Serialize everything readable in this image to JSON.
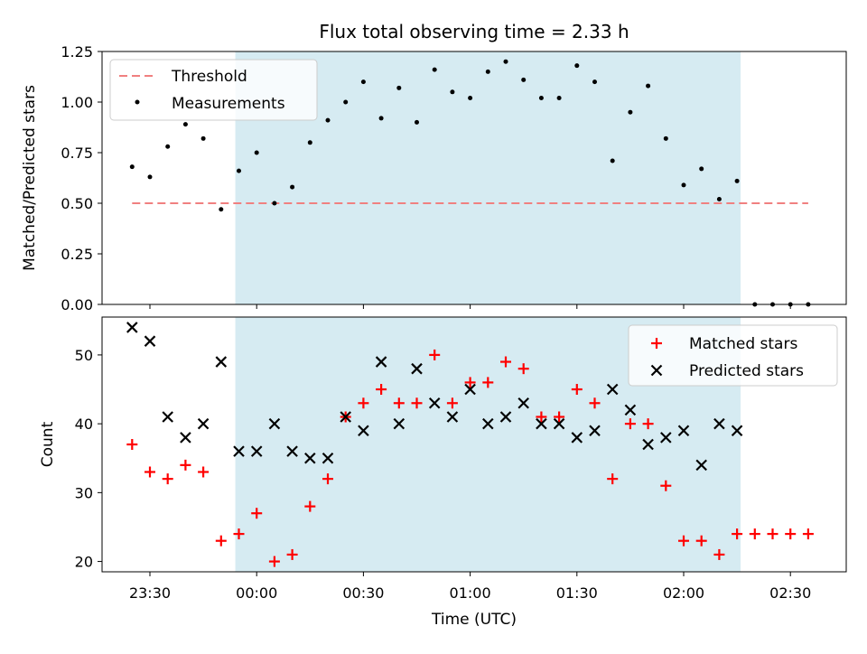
{
  "chart_data": [
    {
      "type": "scatter",
      "title": "Flux total observing time = 2.33 h",
      "ylabel": "Matched/Predicted stars",
      "xlabel": "",
      "ylim": [
        0,
        1.25
      ],
      "yticks": [
        "0.00",
        "0.25",
        "0.50",
        "0.75",
        "1.00",
        "1.25"
      ],
      "shaded_span": {
        "start": "23:54",
        "end": "02:16",
        "color": "#add8e6"
      },
      "legend_position": "top-left",
      "threshold": {
        "name": "Threshold",
        "value": 0.5,
        "start": "23:25",
        "end": "02:35",
        "color": "#f08080"
      },
      "series": [
        {
          "name": "Measurements",
          "color": "#000000",
          "x": [
            "23:25",
            "23:30",
            "23:35",
            "23:40",
            "23:45",
            "23:50",
            "23:55",
            "00:00",
            "00:05",
            "00:10",
            "00:15",
            "00:20",
            "00:25",
            "00:30",
            "00:35",
            "00:40",
            "00:45",
            "00:50",
            "00:55",
            "01:00",
            "01:05",
            "01:10",
            "01:15",
            "01:20",
            "01:25",
            "01:30",
            "01:35",
            "01:40",
            "01:45",
            "01:50",
            "01:55",
            "02:00",
            "02:05",
            "02:10",
            "02:15",
            "02:20",
            "02:25",
            "02:30",
            "02:35"
          ],
          "y": [
            0.68,
            0.63,
            0.78,
            0.89,
            0.82,
            0.47,
            0.66,
            0.75,
            0.5,
            0.58,
            0.8,
            0.91,
            1.0,
            1.1,
            0.92,
            1.07,
            0.9,
            1.16,
            1.05,
            1.02,
            1.15,
            1.2,
            1.11,
            1.02,
            1.02,
            1.18,
            1.1,
            0.71,
            0.95,
            1.08,
            0.82,
            0.59,
            0.67,
            0.52,
            0.61,
            0.0,
            0.0,
            0.0,
            0.0
          ]
        }
      ]
    },
    {
      "type": "scatter",
      "title": "",
      "ylabel": "Count",
      "xlabel": "Time (UTC)",
      "ylim": [
        18.5,
        55.5
      ],
      "yticks": [
        "20",
        "30",
        "40",
        "50"
      ],
      "xticks": [
        "23:30",
        "00:00",
        "00:30",
        "01:00",
        "01:30",
        "02:00",
        "02:30"
      ],
      "shaded_span": {
        "start": "23:54",
        "end": "02:16",
        "color": "#add8e6"
      },
      "legend_position": "top-right",
      "series": [
        {
          "name": "Matched stars",
          "color": "#ff0000",
          "marker": "plus",
          "x": [
            "23:25",
            "23:30",
            "23:35",
            "23:40",
            "23:45",
            "23:50",
            "23:55",
            "00:00",
            "00:05",
            "00:10",
            "00:15",
            "00:20",
            "00:25",
            "00:30",
            "00:35",
            "00:40",
            "00:45",
            "00:50",
            "00:55",
            "01:00",
            "01:05",
            "01:10",
            "01:15",
            "01:20",
            "01:25",
            "01:30",
            "01:35",
            "01:40",
            "01:45",
            "01:50",
            "01:55",
            "02:00",
            "02:05",
            "02:10",
            "02:15",
            "02:20",
            "02:25",
            "02:30",
            "02:35"
          ],
          "y": [
            37,
            33,
            32,
            34,
            33,
            23,
            24,
            27,
            20,
            21,
            28,
            32,
            41,
            43,
            45,
            43,
            43,
            50,
            43,
            46,
            46,
            49,
            48,
            41,
            41,
            45,
            43,
            32,
            40,
            40,
            31,
            23,
            23,
            21,
            24,
            24,
            24,
            24,
            24
          ]
        },
        {
          "name": "Predicted stars",
          "color": "#000000",
          "marker": "x",
          "x": [
            "23:25",
            "23:30",
            "23:35",
            "23:40",
            "23:45",
            "23:50",
            "23:55",
            "00:00",
            "00:05",
            "00:10",
            "00:15",
            "00:20",
            "00:25",
            "00:30",
            "00:35",
            "00:40",
            "00:45",
            "00:50",
            "00:55",
            "01:00",
            "01:05",
            "01:10",
            "01:15",
            "01:20",
            "01:25",
            "01:30",
            "01:35",
            "01:40",
            "01:45",
            "01:50",
            "01:55",
            "02:00",
            "02:05",
            "02:10",
            "02:15"
          ],
          "y": [
            54,
            52,
            41,
            38,
            40,
            49,
            36,
            36,
            40,
            36,
            35,
            35,
            41,
            39,
            49,
            40,
            48,
            43,
            41,
            45,
            40,
            41,
            43,
            40,
            40,
            38,
            39,
            45,
            42,
            37,
            38,
            39,
            34,
            40,
            39
          ]
        }
      ]
    }
  ]
}
